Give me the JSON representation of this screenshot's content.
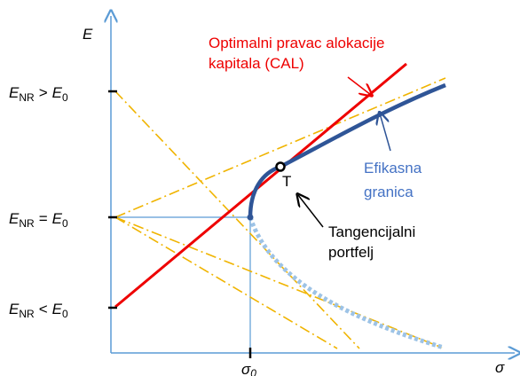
{
  "axes": {
    "y_label": "E",
    "x_label": "σ",
    "x_tick": {
      "main": "σ",
      "sub": "0"
    }
  },
  "y_ticks": [
    {
      "lhs": "E",
      "lhs_sub": "NR",
      "op": ">",
      "rhs": "E",
      "rhs_sub": "0"
    },
    {
      "lhs": "E",
      "lhs_sub": "NR",
      "op": "=",
      "rhs": "E",
      "rhs_sub": "0"
    },
    {
      "lhs": "E",
      "lhs_sub": "NR",
      "op": "<",
      "rhs": "E",
      "rhs_sub": "0"
    }
  ],
  "annotations": {
    "cal": [
      "Optimalni pravac alokacije",
      "kapitala (CAL)"
    ],
    "frontier": [
      "Efikasna",
      "granica"
    ],
    "point": "T",
    "tangency": [
      "Tangencijalni",
      "portfelj"
    ]
  }
}
